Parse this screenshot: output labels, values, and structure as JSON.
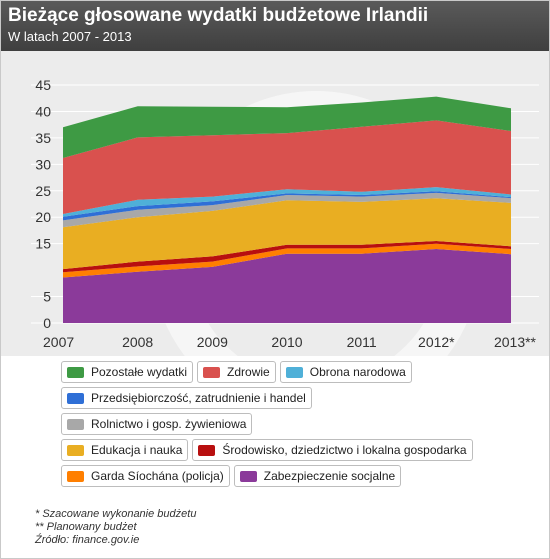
{
  "header": {
    "title": "Bieżące głosowane wydatki budżetowe Irlandii",
    "subtitle": "W latach 2007 - 2013"
  },
  "chart_data": {
    "type": "area",
    "stacked": true,
    "title": "Bieżące głosowane wydatki budżetowe Irlandii",
    "subtitle": "W latach 2007 - 2013",
    "x": [
      "2007",
      "2008",
      "2009",
      "2010",
      "2011",
      "2012*",
      "2013**"
    ],
    "y_ticks": [
      0,
      5,
      15,
      20,
      25,
      30,
      35,
      40,
      45
    ],
    "ylim": [
      0,
      45
    ],
    "grid": true,
    "series": [
      {
        "name": "Zabezpieczenie socjalne",
        "color": "#8b3a9a",
        "values": [
          8.6,
          9.7,
          10.6,
          13.1,
          13.1,
          14.0,
          13.0
        ]
      },
      {
        "name": "Garda Síochána (policja)",
        "color": "#ff7f00",
        "values": [
          1.0,
          1.0,
          1.0,
          1.0,
          1.0,
          1.0,
          1.0
        ]
      },
      {
        "name": "Środowisko, dziedzictwo i lokalna gospodarka",
        "color": "#b80f0f",
        "values": [
          0.6,
          0.9,
          1.0,
          0.7,
          0.7,
          0.5,
          0.5
        ]
      },
      {
        "name": "Edukacja i nauka",
        "color": "#e9ae22",
        "values": [
          7.9,
          8.4,
          8.6,
          8.4,
          8.1,
          8.1,
          8.2
        ]
      },
      {
        "name": "Rolnictwo i gosp. żywieniowa",
        "color": "#a8a8a8",
        "values": [
          1.3,
          1.4,
          1.1,
          1.0,
          1.0,
          1.0,
          0.9
        ]
      },
      {
        "name": "Przedsiębiorczość, zatrudnienie i handel",
        "color": "#2f6fd6",
        "values": [
          0.7,
          0.7,
          0.7,
          0.3,
          0.3,
          0.3,
          0.2
        ]
      },
      {
        "name": "Obrona narodowa",
        "color": "#4fb0d8",
        "values": [
          0.5,
          1.2,
          0.9,
          0.8,
          0.6,
          0.8,
          0.5
        ]
      },
      {
        "name": "Zdrowie",
        "color": "#d9514e",
        "values": [
          10.6,
          11.8,
          11.6,
          10.6,
          12.3,
          12.6,
          12.0
        ]
      },
      {
        "name": "Pozostałe wydatki",
        "color": "#3e9a44",
        "values": [
          5.8,
          5.9,
          5.4,
          4.9,
          4.6,
          4.5,
          4.3
        ]
      }
    ]
  },
  "legend": [
    [
      "Pozostałe wydatki",
      "Zdrowie",
      "Obrona narodowa"
    ],
    [
      "Przedsiębiorczość, zatrudnienie i handel"
    ],
    [
      "Rolnictwo i gosp. żywieniowa"
    ],
    [
      "Edukacja i nauka",
      "Środowisko, dziedzictwo i lokalna gospodarka"
    ],
    [
      "Garda Síochána (policja)",
      "Zabezpieczenie socjalne"
    ]
  ],
  "footnotes": {
    "note1": "* Szacowane wykonanie budżetu",
    "note2": "** Planowany budżet",
    "source": "Źródło: finance.gov.ie"
  }
}
